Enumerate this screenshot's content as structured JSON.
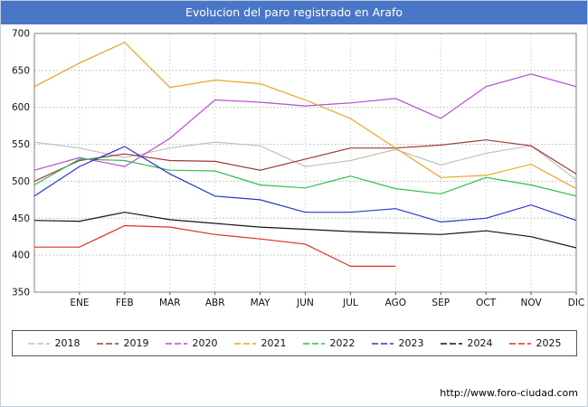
{
  "footer": {
    "url": "http://www.foro-ciudad.com"
  },
  "chart_data": {
    "type": "line",
    "title": "Evolucion del paro registrado en Arafo",
    "categories": [
      "ENE",
      "FEB",
      "MAR",
      "ABR",
      "MAY",
      "JUN",
      "JUL",
      "AGO",
      "SEP",
      "OCT",
      "NOV",
      "DIC"
    ],
    "ylim": [
      350,
      700
    ],
    "ytick_step": 50,
    "grid": true,
    "legend_position": "bottom",
    "layout_hint": "each series has 13 points; the first point sits on the left axis edge before ENE",
    "series": [
      {
        "name": "2018",
        "color": "#c0c0c0",
        "values": [
          553,
          545,
          532,
          545,
          553,
          548,
          520,
          528,
          543,
          522,
          538,
          548,
          502
        ]
      },
      {
        "name": "2019",
        "color": "#a03838",
        "values": [
          500,
          528,
          537,
          528,
          527,
          515,
          530,
          545,
          545,
          549,
          556,
          548,
          510
        ]
      },
      {
        "name": "2020",
        "color": "#b44fd0",
        "values": [
          515,
          532,
          520,
          558,
          610,
          607,
          602,
          606,
          612,
          585,
          628,
          645,
          628
        ]
      },
      {
        "name": "2021",
        "color": "#e8a520",
        "values": [
          628,
          660,
          688,
          627,
          637,
          632,
          610,
          585,
          545,
          505,
          508,
          523,
          490
        ]
      },
      {
        "name": "2022",
        "color": "#2fbf4f",
        "values": [
          495,
          530,
          528,
          515,
          514,
          495,
          491,
          507,
          490,
          483,
          505,
          495,
          480
        ]
      },
      {
        "name": "2023",
        "color": "#2736cf",
        "values": [
          480,
          520,
          547,
          510,
          480,
          475,
          458,
          458,
          463,
          445,
          450,
          468,
          447
        ]
      },
      {
        "name": "2024",
        "color": "#151515",
        "values": [
          447,
          446,
          458,
          448,
          443,
          438,
          435,
          432,
          430,
          428,
          433,
          425,
          410
        ]
      },
      {
        "name": "2025",
        "color": "#e03020",
        "values": [
          411,
          411,
          440,
          438,
          428,
          422,
          415,
          385,
          385,
          null,
          null,
          null,
          null
        ]
      }
    ]
  }
}
